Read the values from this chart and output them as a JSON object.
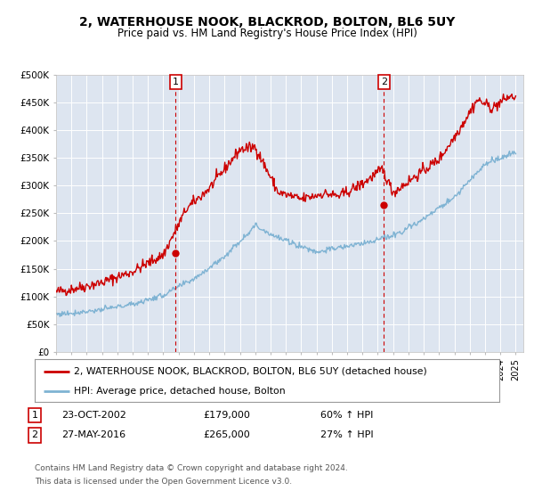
{
  "title": "2, WATERHOUSE NOOK, BLACKROD, BOLTON, BL6 5UY",
  "subtitle": "Price paid vs. HM Land Registry's House Price Index (HPI)",
  "legend_line1": "2, WATERHOUSE NOOK, BLACKROD, BOLTON, BL6 5UY (detached house)",
  "legend_line2": "HPI: Average price, detached house, Bolton",
  "sale1_date": "23-OCT-2002",
  "sale1_price": "£179,000",
  "sale1_hpi": "60% ↑ HPI",
  "sale2_date": "27-MAY-2016",
  "sale2_price": "£265,000",
  "sale2_hpi": "27% ↑ HPI",
  "footnote1": "Contains HM Land Registry data © Crown copyright and database right 2024.",
  "footnote2": "This data is licensed under the Open Government Licence v3.0.",
  "bg_color": "#dde5f0",
  "red_color": "#cc0000",
  "blue_color": "#7fb3d3",
  "ylim": [
    0,
    500000
  ],
  "yticks": [
    0,
    50000,
    100000,
    150000,
    200000,
    250000,
    300000,
    350000,
    400000,
    450000,
    500000
  ],
  "ytick_labels": [
    "£0",
    "£50K",
    "£100K",
    "£150K",
    "£200K",
    "£250K",
    "£300K",
    "£350K",
    "£400K",
    "£450K",
    "£500K"
  ],
  "sale1_year": 2002.8,
  "sale2_year": 2016.4,
  "sale1_red_val": 179000,
  "sale2_red_val": 265000,
  "xmin": 1995,
  "xmax": 2025.5
}
